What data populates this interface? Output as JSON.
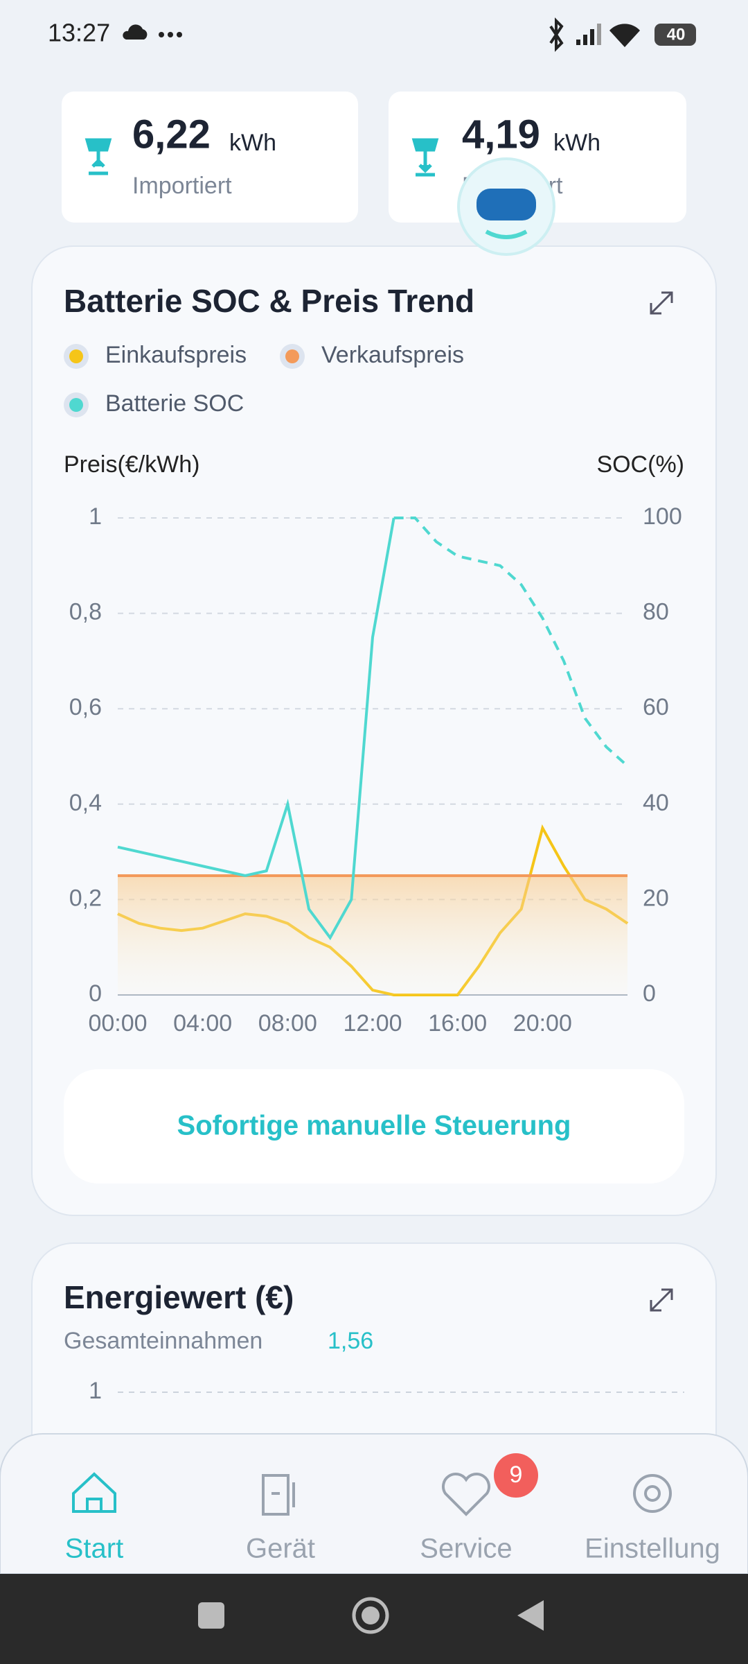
{
  "status_bar": {
    "time": "13:27",
    "battery": "40"
  },
  "summary_cards": [
    {
      "value": "6,22",
      "unit": "kWh",
      "label": "Importiert"
    },
    {
      "value": "4,19",
      "unit": "kWh",
      "label": "Exportiert"
    }
  ],
  "chart_data": {
    "type": "line",
    "title": "Batterie SOC & Preis Trend",
    "y_label": "Preis(€/kWh)",
    "y2_label": "SOC(%)",
    "x": [
      0,
      1,
      2,
      3,
      4,
      5,
      6,
      7,
      8,
      9,
      10,
      11,
      12,
      13,
      14,
      15,
      16,
      17,
      18,
      19,
      20,
      21,
      22,
      23,
      24
    ],
    "xlim": [
      0,
      24
    ],
    "xticks": [
      {
        "value": 0,
        "label": "00:00"
      },
      {
        "value": 4,
        "label": "04:00"
      },
      {
        "value": 8,
        "label": "08:00"
      },
      {
        "value": 12,
        "label": "12:00"
      },
      {
        "value": 16,
        "label": "16:00"
      },
      {
        "value": 20,
        "label": "20:00"
      }
    ],
    "ylim": [
      0,
      1
    ],
    "yticks": [
      0,
      {
        "value": 0.2,
        "label": "0,2"
      },
      {
        "value": 0.4,
        "label": "0,4"
      },
      {
        "value": 0.6,
        "label": "0,6"
      },
      {
        "value": 0.8,
        "label": "0,8"
      },
      1
    ],
    "y2lim": [
      0,
      100
    ],
    "y2ticks": [
      0,
      20,
      40,
      60,
      80,
      100
    ],
    "grid": true,
    "series": [
      {
        "name": "Einkaufspreis",
        "color": "#f5c518",
        "values": [
          0.17,
          0.15,
          0.14,
          0.135,
          0.14,
          0.155,
          0.17,
          0.165,
          0.15,
          0.12,
          0.1,
          0.06,
          0.01,
          0,
          0,
          0,
          0,
          0.06,
          0.13,
          0.18,
          0.35,
          0.27,
          0.2,
          0.18,
          0.15
        ]
      },
      {
        "name": "Verkaufspreis",
        "color": "#f39a5a",
        "values": [
          0.25,
          0.25,
          0.25,
          0.25,
          0.25,
          0.25,
          0.25,
          0.25,
          0.25,
          0.25,
          0.25,
          0.25,
          0.25,
          0.25,
          0.25,
          0.25,
          0.25,
          0.25,
          0.25,
          0.25,
          0.25,
          0.25,
          0.25,
          0.25,
          0.25
        ]
      },
      {
        "name": "Batterie SOC",
        "color": "#4fd8d0",
        "axis": "y2",
        "dashed_from_x": 13,
        "values": [
          31,
          30,
          29,
          28,
          27,
          26,
          25,
          26,
          40,
          18,
          12,
          20,
          75,
          100,
          100,
          95,
          92,
          91,
          90,
          86,
          79,
          70,
          58,
          52,
          48
        ]
      }
    ]
  },
  "control_button": "Sofortige manuelle Steuerung",
  "energy_card": {
    "title": "Energiewert (€)",
    "subtitle": "Gesamteinnahmen",
    "total": "1,56",
    "tick": "1"
  },
  "nav": [
    {
      "label": "Start"
    },
    {
      "label": "Gerät"
    },
    {
      "label": "Service",
      "badge": "9"
    },
    {
      "label": "Einstellung"
    }
  ]
}
